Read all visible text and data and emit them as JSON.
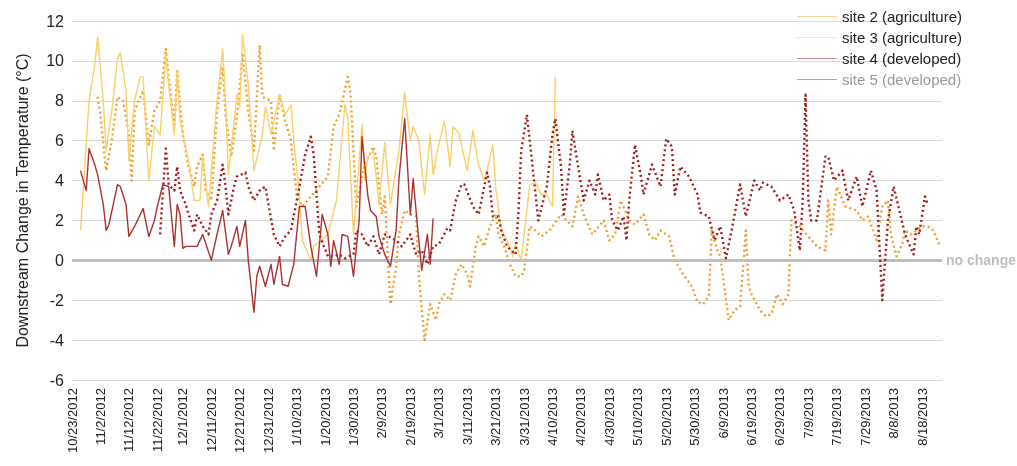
{
  "chart_data": {
    "type": "line",
    "ylabel": "Downstream Change in Temperature (°C)",
    "xlim": [
      "2012-10-23",
      "2013-08-25"
    ],
    "xticks": [
      {
        "value": "2012-10-23",
        "label": "10/23/2012"
      },
      {
        "value": "2012-11-02",
        "label": "11/2/2012"
      },
      {
        "value": "2012-11-12",
        "label": "11/12/2012"
      },
      {
        "value": "2012-11-22",
        "label": "11/22/2012"
      },
      {
        "value": "2012-12-01",
        "label": "12/1/2012"
      },
      {
        "value": "2012-12-11",
        "label": "12/11/2012"
      },
      {
        "value": "2012-12-21",
        "label": "12/21/2012"
      },
      {
        "value": "2012-12-31",
        "label": "12/31/2012"
      },
      {
        "value": "2013-01-10",
        "label": "1/10/2013"
      },
      {
        "value": "2013-01-20",
        "label": "1/20/2013"
      },
      {
        "value": "2013-01-30",
        "label": "1/30/2013"
      },
      {
        "value": "2013-02-09",
        "label": "2/9/2013"
      },
      {
        "value": "2013-02-19",
        "label": "2/19/2013"
      },
      {
        "value": "2013-03-01",
        "label": "3/1/2013"
      },
      {
        "value": "2013-03-11",
        "label": "3/11/2013"
      },
      {
        "value": "2013-03-21",
        "label": "3/21/2013"
      },
      {
        "value": "2013-03-31",
        "label": "3/31/2013"
      },
      {
        "value": "2013-04-10",
        "label": "4/10/2013"
      },
      {
        "value": "2013-04-20",
        "label": "4/20/2013"
      },
      {
        "value": "2013-04-30",
        "label": "4/30/2013"
      },
      {
        "value": "2013-05-10",
        "label": "5/10/2013"
      },
      {
        "value": "2013-05-20",
        "label": "5/20/2013"
      },
      {
        "value": "2013-05-30",
        "label": "5/30/2013"
      },
      {
        "value": "2013-06-09",
        "label": "6/9/2013"
      },
      {
        "value": "2013-06-19",
        "label": "6/19/2013"
      },
      {
        "value": "2013-06-29",
        "label": "6/29/2013"
      },
      {
        "value": "2013-07-09",
        "label": "7/9/2013"
      },
      {
        "value": "2013-07-19",
        "label": "7/19/2013"
      },
      {
        "value": "2013-07-29",
        "label": "7/29/2013"
      },
      {
        "value": "2013-08-08",
        "label": "8/8/2013"
      },
      {
        "value": "2013-08-18",
        "label": "8/18/2013"
      }
    ],
    "ylim": [
      -6,
      12
    ],
    "yticks": [
      -6,
      -4,
      -2,
      0,
      2,
      4,
      6,
      8,
      10,
      12
    ],
    "grid": "y",
    "legend": "top right",
    "marker": "none",
    "ref_lines": [
      {
        "axis": "y",
        "value": 0,
        "label": "no change",
        "color": "#bfbfbf"
      }
    ],
    "series": [
      {
        "name": "site 2 (agriculture)",
        "color": "#f0a030",
        "line_style": "dotted",
        "x": [
          "2012-11-01",
          "2012-11-02",
          "2012-11-04",
          "2012-11-06",
          "2012-11-08",
          "2012-11-10",
          "2012-11-12",
          "2012-11-13",
          "2012-11-14",
          "2012-11-17",
          "2012-11-19",
          "2012-11-21",
          "2012-11-23",
          "2012-11-25",
          "2012-11-26",
          "2012-11-28",
          "2012-11-29",
          "2012-12-01",
          "2012-12-03",
          "2012-12-05",
          "2012-12-06",
          "2012-12-08",
          "2012-12-09",
          "2012-12-11",
          "2012-12-13",
          "2012-12-15",
          "2012-12-16",
          "2012-12-18",
          "2012-12-20",
          "2012-12-22",
          "2012-12-24",
          "2012-12-26",
          "2012-12-28",
          "2012-12-29",
          "2013-01-01",
          "2013-01-02",
          "2013-01-04",
          "2013-01-06",
          "2013-01-08",
          "2013-01-10",
          "2013-01-12",
          "2013-01-18",
          "2013-01-21",
          "2013-01-23",
          "2013-01-25",
          "2013-01-28",
          "2013-01-29",
          "2013-01-31",
          "2013-02-03",
          "2013-02-06",
          "2013-02-07",
          "2013-02-09",
          "2013-02-10",
          "2013-02-12",
          "2013-02-14",
          "2013-02-15",
          "2013-02-17",
          "2013-02-19",
          "2013-02-21",
          "2013-02-22",
          "2013-02-24",
          "2013-02-26",
          "2013-02-28",
          "2013-03-01",
          "2013-03-03",
          "2013-03-05",
          "2013-03-07",
          "2013-03-09",
          "2013-03-11",
          "2013-03-12",
          "2013-03-14",
          "2013-03-15",
          "2013-03-17",
          "2013-03-19",
          "2013-03-21",
          "2013-03-22",
          "2013-03-24",
          "2013-03-26",
          "2013-03-28",
          "2013-03-30",
          "2013-03-31",
          "2013-04-02",
          "2013-04-04",
          "2013-04-06",
          "2013-04-09",
          "2013-04-13",
          "2013-04-15",
          "2013-04-17",
          "2013-04-19",
          "2013-04-21",
          "2013-04-24",
          "2013-04-28",
          "2013-04-30",
          "2013-05-02",
          "2013-05-04",
          "2013-05-07",
          "2013-05-09",
          "2013-05-12",
          "2013-05-14",
          "2013-05-16",
          "2013-05-18",
          "2013-05-21",
          "2013-05-23",
          "2013-05-26",
          "2013-05-29",
          "2013-05-31",
          "2013-06-02",
          "2013-06-04",
          "2013-06-05",
          "2013-06-07",
          "2013-06-08",
          "2013-06-11",
          "2013-06-13",
          "2013-06-15",
          "2013-06-17",
          "2013-06-18",
          "2013-06-19",
          "2013-06-22",
          "2013-06-24",
          "2013-06-26",
          "2013-06-28",
          "2013-06-30",
          "2013-07-02",
          "2013-07-03",
          "2013-07-06",
          "2013-07-09",
          "2013-07-12",
          "2013-07-15",
          "2013-07-16",
          "2013-07-17",
          "2013-07-19",
          "2013-07-22",
          "2013-07-26",
          "2013-07-28",
          "2013-07-30",
          "2013-08-02",
          "2013-08-04",
          "2013-08-06",
          "2013-08-07",
          "2013-08-09",
          "2013-08-11",
          "2013-08-12",
          "2013-08-14",
          "2013-08-18",
          "2013-08-20",
          "2013-08-22",
          "2013-08-24"
        ],
        "values": [
          8.2,
          7.3,
          4.5,
          6,
          8.2,
          8,
          6.3,
          4,
          7.5,
          8.5,
          5.8,
          7.5,
          8,
          10.6,
          9.2,
          6.8,
          9.5,
          6.3,
          4.7,
          3.7,
          4.7,
          5.3,
          3.5,
          3,
          7.5,
          9.7,
          7.3,
          5.2,
          7.2,
          10.3,
          7.5,
          5.5,
          10.8,
          8.2,
          8,
          5.5,
          8.3,
          7,
          6,
          3.3,
          2.7,
          3.7,
          4.2,
          6.7,
          7.3,
          9.2,
          8.3,
          2.7,
          4.8,
          5.7,
          5.2,
          2.3,
          3.2,
          -2.2,
          -0.3,
          1.3,
          2.5,
          2.3,
          2.2,
          -0.8,
          -4,
          -2.2,
          -3,
          -2.2,
          -1.7,
          -2,
          -0.7,
          -0.2,
          -0.7,
          -1.3,
          0.7,
          1.2,
          0.7,
          1.7,
          2.3,
          1.3,
          0.7,
          -0.2,
          -0.8,
          -0.8,
          -0.5,
          1.7,
          1.5,
          1.2,
          1.5,
          2.3,
          2,
          1.7,
          3.2,
          2.3,
          1.3,
          2,
          1,
          1.3,
          3,
          2,
          1.8,
          2.3,
          1.3,
          1,
          1.5,
          1.2,
          0,
          -0.7,
          -1.3,
          -2.1,
          -2.2,
          -1.8,
          1.5,
          0.5,
          0.2,
          -3,
          -2.5,
          -2.3,
          1.5,
          -1.3,
          -1.7,
          -2.5,
          -2.8,
          -2.7,
          -1.7,
          -2.2,
          -1.7,
          2,
          1.7,
          1.2,
          0.7,
          0.5,
          3,
          1.3,
          3.7,
          2.7,
          2.5,
          2,
          2.2,
          1,
          2.7,
          3,
          1.3,
          0.2,
          0.8,
          1.5,
          1.3,
          1.7,
          1.7,
          1.5,
          0.8
        ]
      },
      {
        "name": "site 3 (agriculture)",
        "color": "#f9d06a",
        "line_style": "solid",
        "x": [
          "2012-10-26",
          "2012-10-29",
          "2012-10-31",
          "2012-11-01",
          "2012-11-03",
          "2012-11-04",
          "2012-11-06",
          "2012-11-08",
          "2012-11-09",
          "2012-11-11",
          "2012-11-12",
          "2012-11-14",
          "2012-11-16",
          "2012-11-17",
          "2012-11-19",
          "2012-11-21",
          "2012-11-23",
          "2012-11-25",
          "2012-11-26",
          "2012-11-28",
          "2012-11-29",
          "2012-11-30",
          "2012-12-03",
          "2012-12-05",
          "2012-12-07",
          "2012-12-08",
          "2012-12-10",
          "2012-12-13",
          "2012-12-15",
          "2012-12-16",
          "2012-12-17",
          "2012-12-20",
          "2012-12-21",
          "2012-12-22",
          "2012-12-24",
          "2012-12-26",
          "2012-12-29",
          "2012-12-30",
          "2013-01-01",
          "2013-01-04",
          "2013-01-06",
          "2013-01-08",
          "2013-01-09",
          "2013-01-11",
          "2013-01-12",
          "2013-01-15",
          "2013-01-16",
          "2013-01-21",
          "2013-01-24",
          "2013-01-27",
          "2013-01-28",
          "2013-01-30",
          "2013-02-02",
          "2013-02-03",
          "2013-02-04",
          "2013-02-06",
          "2013-02-08",
          "2013-02-10",
          "2013-02-12",
          "2013-02-15",
          "2013-02-17",
          "2013-02-19",
          "2013-02-20",
          "2013-02-22",
          "2013-02-24",
          "2013-02-26",
          "2013-02-27",
          "2013-03-01",
          "2013-03-03",
          "2013-03-05",
          "2013-03-06",
          "2013-03-08",
          "2013-03-11",
          "2013-03-13",
          "2013-03-15",
          "2013-03-17",
          "2013-03-18",
          "2013-03-20",
          "2013-03-21",
          "2013-03-23",
          "2013-03-25",
          "2013-03-27",
          "2013-03-28",
          "2013-03-30",
          "2013-04-02",
          "2013-04-04",
          "2013-04-06",
          "2013-04-08",
          "2013-04-10",
          "2013-04-11"
        ],
        "values": [
          1.5,
          8,
          9.8,
          11.2,
          8,
          5.5,
          7.5,
          10.1,
          10.4,
          8.5,
          5,
          8,
          9.2,
          9.2,
          4,
          6.7,
          6.3,
          10.3,
          8.8,
          6.3,
          9.5,
          7,
          5,
          3,
          3,
          5.2,
          2.7,
          8,
          10.6,
          8,
          4.3,
          8.3,
          7.7,
          11.3,
          8.8,
          4.5,
          6.3,
          7.7,
          6.3,
          8.3,
          7.3,
          7.8,
          6,
          3.3,
          1,
          0,
          0.7,
          1.3,
          3,
          7.8,
          7.2,
          1.3,
          6.8,
          4,
          5.2,
          5.5,
          2.8,
          5.9,
          2.8,
          5.5,
          8.4,
          6,
          6.7,
          6,
          3.3,
          6.3,
          4.3,
          5.8,
          7,
          4.7,
          6.7,
          6.4,
          4.5,
          6.5,
          4.8,
          4,
          4.5,
          5.8,
          3.7,
          1.5,
          1,
          0.2,
          0.8,
          0,
          3.8,
          3.9,
          3.3,
          3.3,
          2.7,
          9.2
        ]
      },
      {
        "name": "site 4 (developed)",
        "color": "#a01c1c",
        "line_style": "dotted",
        "x": [
          "2012-11-23",
          "2012-11-24",
          "2012-11-25",
          "2012-11-26",
          "2012-11-28",
          "2012-11-29",
          "2012-11-30",
          "2012-12-02",
          "2012-12-03",
          "2012-12-05",
          "2012-12-06",
          "2012-12-08",
          "2012-12-10",
          "2012-12-11",
          "2012-12-13",
          "2012-12-15",
          "2012-12-16",
          "2012-12-17",
          "2012-12-19",
          "2012-12-20",
          "2012-12-23",
          "2012-12-24",
          "2012-12-26",
          "2012-12-28",
          "2012-12-30",
          "2013-01-02",
          "2013-01-04",
          "2013-01-06",
          "2013-01-08",
          "2013-01-11",
          "2013-01-13",
          "2013-01-15",
          "2013-01-16",
          "2013-01-18",
          "2013-01-21",
          "2013-01-23",
          "2013-01-25",
          "2013-01-27",
          "2013-01-30",
          "2013-01-31",
          "2013-02-02",
          "2013-02-04",
          "2013-02-06",
          "2013-02-08",
          "2013-02-10",
          "2013-02-14",
          "2013-02-16",
          "2013-02-19",
          "2013-02-21",
          "2013-02-23",
          "2013-02-25",
          "2013-02-27",
          "2013-03-01",
          "2013-03-04",
          "2013-03-05",
          "2013-03-07",
          "2013-03-09",
          "2013-03-10",
          "2013-03-13",
          "2013-03-15",
          "2013-03-16",
          "2013-03-18",
          "2013-03-19",
          "2013-03-20",
          "2013-03-22",
          "2013-03-23",
          "2013-03-25",
          "2013-03-28",
          "2013-03-29",
          "2013-03-30",
          "2013-04-01",
          "2013-04-03",
          "2013-04-05",
          "2013-04-08",
          "2013-04-10",
          "2013-04-11",
          "2013-04-13",
          "2013-04-14",
          "2013-04-16",
          "2013-04-17",
          "2013-04-19",
          "2013-04-21",
          "2013-04-23",
          "2013-04-25",
          "2013-04-26",
          "2013-04-28",
          "2013-04-30",
          "2013-05-01",
          "2013-05-03",
          "2013-05-05",
          "2013-05-06",
          "2013-05-07",
          "2013-05-09",
          "2013-05-11",
          "2013-05-12",
          "2013-05-15",
          "2013-05-18",
          "2013-05-20",
          "2013-05-22",
          "2013-05-23",
          "2013-05-25",
          "2013-05-28",
          "2013-05-31",
          "2013-06-01",
          "2013-06-04",
          "2013-06-06",
          "2013-06-08",
          "2013-06-10",
          "2013-06-12",
          "2013-06-15",
          "2013-06-17",
          "2013-06-20",
          "2013-06-22",
          "2013-06-23",
          "2013-06-26",
          "2013-06-29",
          "2013-07-02",
          "2013-07-04",
          "2013-07-06",
          "2013-07-07",
          "2013-07-08",
          "2013-07-09",
          "2013-07-10",
          "2013-07-12",
          "2013-07-15",
          "2013-07-16",
          "2013-07-18",
          "2013-07-21",
          "2013-07-23",
          "2013-07-26",
          "2013-07-28",
          "2013-07-31",
          "2013-08-02",
          "2013-08-04",
          "2013-08-06",
          "2013-08-08",
          "2013-08-10",
          "2013-08-12",
          "2013-08-15",
          "2013-08-16",
          "2013-08-17",
          "2013-08-19",
          "2013-08-20"
        ],
        "values": [
          1.3,
          3.5,
          5.6,
          3.8,
          3.5,
          4.7,
          3.5,
          2.8,
          2.3,
          1.5,
          2.3,
          1.7,
          1.3,
          2.3,
          3,
          4.8,
          3.7,
          2.3,
          3.7,
          4.2,
          4.4,
          3.7,
          3,
          3.5,
          3.7,
          1.3,
          0.7,
          1.2,
          1.5,
          3.7,
          5.3,
          6.2,
          5.3,
          1.3,
          0.2,
          0.2,
          0.3,
          0.1,
          0.3,
          1.5,
          1.3,
          0.7,
          1.2,
          0.3,
          1.3,
          1,
          0.7,
          1.3,
          0.3,
          0.5,
          -0.2,
          0.7,
          0.8,
          1.6,
          1.5,
          3,
          3.8,
          3.8,
          2.7,
          2.3,
          3,
          4.4,
          3.7,
          2.2,
          2.2,
          1.5,
          0.7,
          0.3,
          2.3,
          5.5,
          7.3,
          4.7,
          2,
          3.7,
          6.3,
          7.1,
          4.7,
          2.3,
          4.7,
          6.5,
          4.7,
          3,
          4,
          3.3,
          4.3,
          3,
          3.3,
          2,
          1.5,
          2.2,
          1,
          3,
          5.8,
          4.3,
          3.3,
          4.8,
          3.7,
          6.1,
          5.7,
          3.3,
          4.7,
          4.2,
          3.3,
          2.4,
          2.2,
          1,
          1.7,
          0.1,
          1.5,
          3.8,
          2.2,
          4,
          3.5,
          3.9,
          3.7,
          3,
          3.3,
          2.5,
          0.5,
          3,
          8.3,
          3,
          2,
          2,
          5.2,
          5.2,
          4,
          4.5,
          3,
          4.2,
          2.7,
          4.5,
          3.5,
          -2,
          2,
          3.7,
          2.5,
          1.3,
          0.3,
          1.7,
          1.3,
          3.2,
          2.8
        ]
      },
      {
        "name": "site 5 (developed)",
        "color": "#a83232",
        "line_style": "solid",
        "x": [
          "2012-10-26",
          "2012-10-28",
          "2012-10-29",
          "2012-10-31",
          "2012-11-01",
          "2012-11-03",
          "2012-11-04",
          "2012-11-05",
          "2012-11-08",
          "2012-11-09",
          "2012-11-11",
          "2012-11-12",
          "2012-11-14",
          "2012-11-16",
          "2012-11-17",
          "2012-11-19",
          "2012-11-21",
          "2012-11-22",
          "2012-11-24",
          "2012-11-26",
          "2012-11-28",
          "2012-11-29",
          "2012-11-30",
          "2012-12-01",
          "2012-12-02",
          "2012-12-04",
          "2012-12-06",
          "2012-12-08",
          "2012-12-11",
          "2012-12-13",
          "2012-12-15",
          "2012-12-17",
          "2012-12-18",
          "2012-12-20",
          "2012-12-21",
          "2012-12-23",
          "2012-12-24",
          "2012-12-26",
          "2012-12-27",
          "2012-12-28",
          "2012-12-30",
          "2013-01-01",
          "2013-01-02",
          "2013-01-04",
          "2013-01-05",
          "2013-01-07",
          "2013-01-09",
          "2013-01-10",
          "2013-01-11",
          "2013-01-13",
          "2013-01-15",
          "2013-01-17",
          "2013-01-19",
          "2013-01-21",
          "2013-01-22",
          "2013-01-23",
          "2013-01-25",
          "2013-01-26",
          "2013-01-28",
          "2013-01-30",
          "2013-02-01",
          "2013-02-02",
          "2013-02-04",
          "2013-02-05",
          "2013-02-07",
          "2013-02-08",
          "2013-02-10",
          "2013-02-12",
          "2013-02-14",
          "2013-02-15",
          "2013-02-17",
          "2013-02-19",
          "2013-02-20",
          "2013-02-21",
          "2013-02-23",
          "2013-02-25",
          "2013-02-26",
          "2013-02-27"
        ],
        "values": [
          4.5,
          3.5,
          5.6,
          4.8,
          4.3,
          2.8,
          1.5,
          1.8,
          3.8,
          3.7,
          2.8,
          1.2,
          1.7,
          2.3,
          2.6,
          1.2,
          2,
          2.7,
          3.8,
          3.7,
          0.7,
          2.8,
          2.3,
          0.6,
          0.7,
          0.7,
          0.7,
          1.3,
          0,
          1.3,
          2.5,
          0.3,
          0.7,
          1.7,
          0.7,
          2,
          0,
          -2.6,
          -0.8,
          -0.3,
          -1.3,
          -0.2,
          -1.2,
          0.2,
          -1.2,
          -1.3,
          -0.2,
          1.3,
          2.7,
          2.7,
          0.7,
          -0.8,
          2.3,
          1.3,
          -0.3,
          1,
          -0.2,
          1.3,
          1.2,
          -0.8,
          2,
          6.2,
          3.3,
          2.5,
          2.2,
          1.2,
          0.3,
          -0.3,
          1.5,
          4.1,
          7.1,
          2.3,
          4.1,
          2.5,
          -0.5,
          1.3,
          -0.2,
          2.1
        ]
      }
    ]
  }
}
